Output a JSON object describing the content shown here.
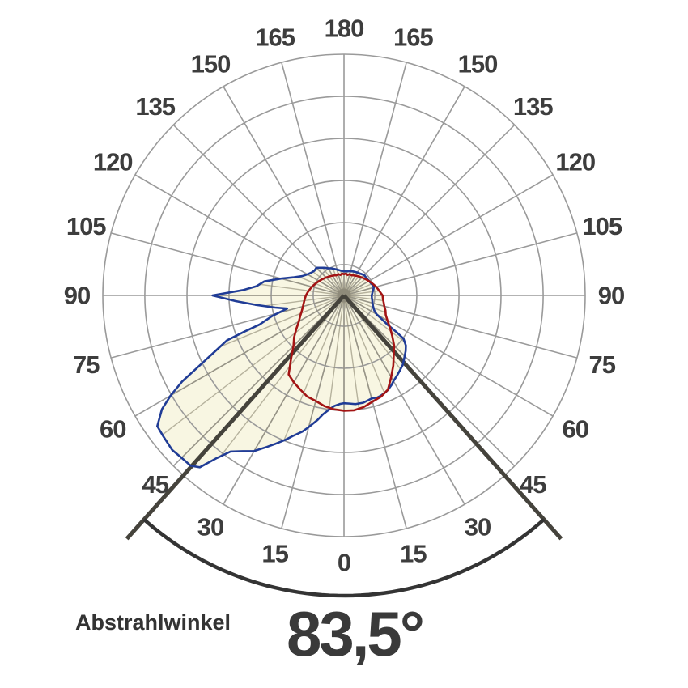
{
  "page": {
    "background": "#ffffff"
  },
  "caption": {
    "label": "Abstrahlwinkel",
    "value": "83,5°"
  },
  "chart_data": {
    "type": "polar-line",
    "title": "",
    "description": "Luminous intensity distribution polar diagram; 0° = nadir (down), 180° = zenith (up), angle labels on both sides",
    "angle_axis": {
      "unit": "degrees",
      "tick_step_deg": 15,
      "tick_labels": [
        "0",
        "15",
        "30",
        "45",
        "60",
        "75",
        "90",
        "105",
        "120",
        "135",
        "150",
        "165",
        "180"
      ],
      "labels_both_sides": true
    },
    "radial_axis": {
      "rings": 6,
      "ring_fractions": [
        0.128,
        0.302,
        0.477,
        0.651,
        0.826,
        1.0
      ],
      "tick_labels_visible": false
    },
    "grid": {
      "on": true,
      "spoke_step_deg": 15,
      "ray_step_deg": 7.5
    },
    "beam": {
      "label": "Abstrahlwinkel",
      "value_display": "83,5°",
      "value_deg": 83.5,
      "half_angle_deg": 41.75
    },
    "colors": {
      "grid": "#9a9a9a",
      "rays": "rgba(151,146,124,0.68)",
      "fill": "#f8f6e2",
      "blue_curve": "#203c96",
      "red_curve": "#a31414",
      "beam_lines": "#45433c",
      "arc": "#343434",
      "labels": "#3d3d3d",
      "caption_text": "#333333",
      "center_dot": "#8e8a7a"
    },
    "angle_labels": [
      {
        "text": "0",
        "theta": 0
      },
      {
        "text": "15",
        "theta": 15
      },
      {
        "text": "15",
        "theta": -15
      },
      {
        "text": "30",
        "theta": 30
      },
      {
        "text": "30",
        "theta": -30
      },
      {
        "text": "45",
        "theta": 45
      },
      {
        "text": "45",
        "theta": -45
      },
      {
        "text": "60",
        "theta": 60
      },
      {
        "text": "60",
        "theta": -60
      },
      {
        "text": "75",
        "theta": 75
      },
      {
        "text": "75",
        "theta": -75
      },
      {
        "text": "90",
        "theta": 90
      },
      {
        "text": "90",
        "theta": -90
      },
      {
        "text": "105",
        "theta": 105
      },
      {
        "text": "105",
        "theta": -105
      },
      {
        "text": "120",
        "theta": 120
      },
      {
        "text": "120",
        "theta": -120
      },
      {
        "text": "135",
        "theta": 135
      },
      {
        "text": "135",
        "theta": -135
      },
      {
        "text": "150",
        "theta": 150
      },
      {
        "text": "150",
        "theta": -150
      },
      {
        "text": "165",
        "theta": 165
      },
      {
        "text": "165",
        "theta": -165
      },
      {
        "text": "180",
        "theta": 180
      }
    ],
    "series": [
      {
        "name": "blue-curve",
        "color_key": "blue_curve",
        "points": [
          [
            -180,
            0.1
          ],
          [
            -175,
            0.102
          ],
          [
            -170,
            0.106
          ],
          [
            -165,
            0.111
          ],
          [
            -160,
            0.117
          ],
          [
            -155,
            0.124
          ],
          [
            -150,
            0.13
          ],
          [
            -145,
            0.14
          ],
          [
            -140,
            0.15
          ],
          [
            -135,
            0.162
          ],
          [
            -130,
            0.16
          ],
          [
            -125,
            0.165
          ],
          [
            -120,
            0.175
          ],
          [
            -115,
            0.19
          ],
          [
            -110,
            0.22
          ],
          [
            -105,
            0.27
          ],
          [
            -100,
            0.335
          ],
          [
            -96,
            0.365
          ],
          [
            -93,
            0.42
          ],
          [
            -90,
            0.545
          ],
          [
            -87,
            0.45
          ],
          [
            -84,
            0.37
          ],
          [
            -80,
            0.29
          ],
          [
            -77,
            0.242
          ],
          [
            -74,
            0.31
          ],
          [
            -71,
            0.37
          ],
          [
            -70,
            0.44
          ],
          [
            -69,
            0.52
          ],
          [
            -67,
            0.57
          ],
          [
            -64,
            0.67
          ],
          [
            -62,
            0.76
          ],
          [
            -60,
            0.83
          ],
          [
            -58,
            0.89
          ],
          [
            -55,
            0.945
          ],
          [
            -52,
            0.95
          ],
          [
            -48,
            0.958
          ],
          [
            -45,
            0.952
          ],
          [
            -42,
            0.95
          ],
          [
            -40,
            0.93
          ],
          [
            -38,
            0.855
          ],
          [
            -36,
            0.8
          ],
          [
            -33,
            0.77
          ],
          [
            -30,
            0.745
          ],
          [
            -27,
            0.705
          ],
          [
            -25,
            0.68
          ],
          [
            -22,
            0.645
          ],
          [
            -20,
            0.62
          ],
          [
            -17,
            0.59
          ],
          [
            -15,
            0.565
          ],
          [
            -12,
            0.528
          ],
          [
            -10,
            0.5
          ],
          [
            -7,
            0.474
          ],
          [
            -5,
            0.46
          ],
          [
            -2,
            0.45
          ],
          [
            0,
            0.447
          ],
          [
            3,
            0.449
          ],
          [
            6,
            0.453
          ],
          [
            10,
            0.452
          ],
          [
            13,
            0.446
          ],
          [
            15,
            0.442
          ],
          [
            18,
            0.445
          ],
          [
            20,
            0.443
          ],
          [
            23,
            0.437
          ],
          [
            25,
            0.432
          ],
          [
            28,
            0.42
          ],
          [
            30,
            0.41
          ],
          [
            33,
            0.4
          ],
          [
            36,
            0.39
          ],
          [
            40,
            0.378
          ],
          [
            44,
            0.36
          ],
          [
            48,
            0.344
          ],
          [
            51,
            0.33
          ],
          [
            54,
            0.305
          ],
          [
            55,
            0.268
          ],
          [
            56,
            0.22
          ],
          [
            58,
            0.184
          ],
          [
            60,
            0.156
          ],
          [
            63,
            0.142
          ],
          [
            66,
            0.135
          ],
          [
            70,
            0.128
          ],
          [
            75,
            0.122
          ],
          [
            80,
            0.119
          ],
          [
            85,
            0.116
          ],
          [
            90,
            0.115
          ],
          [
            95,
            0.118
          ],
          [
            100,
            0.122
          ],
          [
            105,
            0.128
          ],
          [
            110,
            0.126
          ],
          [
            115,
            0.122
          ],
          [
            120,
            0.12
          ],
          [
            125,
            0.118
          ],
          [
            130,
            0.118
          ],
          [
            135,
            0.119
          ],
          [
            140,
            0.115
          ],
          [
            145,
            0.112
          ],
          [
            150,
            0.11
          ],
          [
            155,
            0.108
          ],
          [
            160,
            0.106
          ],
          [
            165,
            0.104
          ],
          [
            170,
            0.102
          ],
          [
            175,
            0.1
          ],
          [
            180,
            0.1
          ]
        ]
      },
      {
        "name": "red-curve",
        "color_key": "red_curve",
        "points": [
          [
            -180,
            0.088
          ],
          [
            -175,
            0.091
          ],
          [
            -170,
            0.086
          ],
          [
            -165,
            0.092
          ],
          [
            -160,
            0.089
          ],
          [
            -155,
            0.092
          ],
          [
            -150,
            0.094
          ],
          [
            -145,
            0.098
          ],
          [
            -140,
            0.101
          ],
          [
            -135,
            0.105
          ],
          [
            -130,
            0.109
          ],
          [
            -125,
            0.114
          ],
          [
            -120,
            0.119
          ],
          [
            -115,
            0.125
          ],
          [
            -110,
            0.131
          ],
          [
            -105,
            0.138
          ],
          [
            -100,
            0.144
          ],
          [
            -95,
            0.151
          ],
          [
            -90,
            0.158
          ],
          [
            -85,
            0.163
          ],
          [
            -80,
            0.169
          ],
          [
            -75,
            0.176
          ],
          [
            -70,
            0.186
          ],
          [
            -65,
            0.2
          ],
          [
            -60,
            0.216
          ],
          [
            -55,
            0.241
          ],
          [
            -50,
            0.27
          ],
          [
            -45,
            0.296
          ],
          [
            -40,
            0.341
          ],
          [
            -35,
            0.4
          ],
          [
            -30,
            0.416
          ],
          [
            -25,
            0.43
          ],
          [
            -20,
            0.446
          ],
          [
            -15,
            0.453
          ],
          [
            -10,
            0.466
          ],
          [
            -5,
            0.474
          ],
          [
            0,
            0.478
          ],
          [
            5,
            0.478
          ],
          [
            10,
            0.47
          ],
          [
            15,
            0.456
          ],
          [
            20,
            0.447
          ],
          [
            25,
            0.431
          ],
          [
            30,
            0.391
          ],
          [
            35,
            0.356
          ],
          [
            40,
            0.321
          ],
          [
            45,
            0.294
          ],
          [
            50,
            0.261
          ],
          [
            55,
            0.233
          ],
          [
            60,
            0.208
          ],
          [
            65,
            0.191
          ],
          [
            70,
            0.183
          ],
          [
            75,
            0.173
          ],
          [
            80,
            0.167
          ],
          [
            85,
            0.162
          ],
          [
            90,
            0.16
          ],
          [
            95,
            0.151
          ],
          [
            100,
            0.144
          ],
          [
            105,
            0.138
          ],
          [
            110,
            0.131
          ],
          [
            115,
            0.125
          ],
          [
            120,
            0.119
          ],
          [
            125,
            0.114
          ],
          [
            130,
            0.109
          ],
          [
            135,
            0.105
          ],
          [
            140,
            0.101
          ],
          [
            145,
            0.098
          ],
          [
            150,
            0.094
          ],
          [
            155,
            0.092
          ],
          [
            160,
            0.089
          ],
          [
            165,
            0.092
          ],
          [
            170,
            0.086
          ],
          [
            175,
            0.091
          ],
          [
            180,
            0.088
          ]
        ]
      }
    ]
  }
}
